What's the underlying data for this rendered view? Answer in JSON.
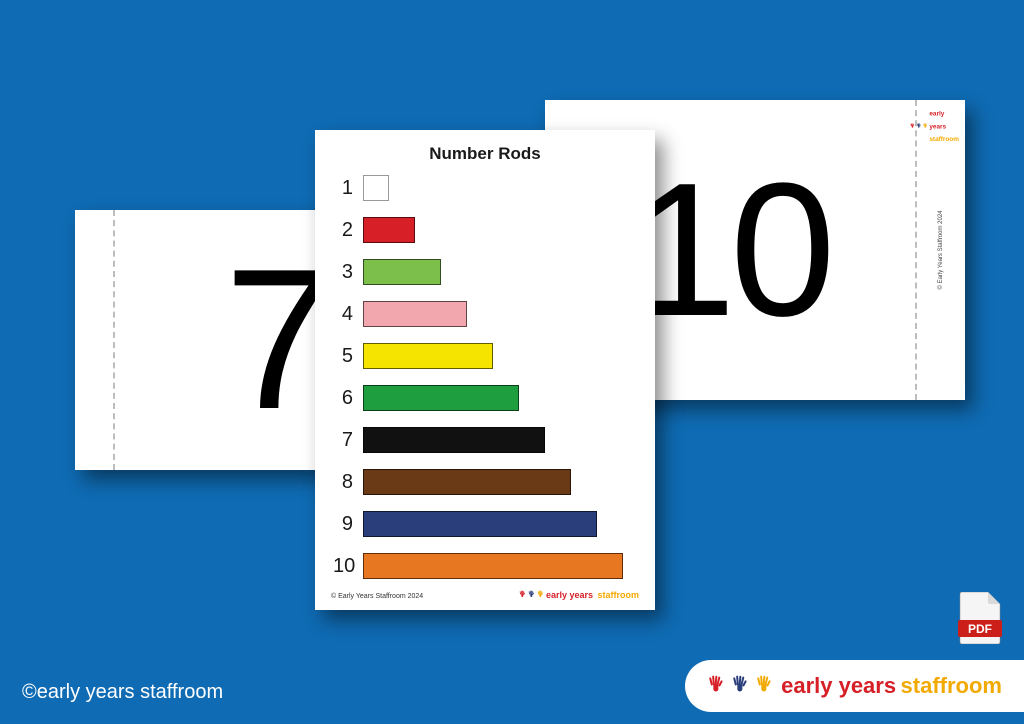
{
  "background_color": "#0f6bb3",
  "card7": {
    "number": "7"
  },
  "card10": {
    "number": "10",
    "side_copyright": "© Early Years Staffroom 2024"
  },
  "chart": {
    "title": "Number Rods",
    "title_fontsize": 17,
    "rod_height": 26,
    "row_gap": 14,
    "unit_width": 26,
    "rods": [
      {
        "label": "1",
        "units": 1,
        "color": "#ffffff"
      },
      {
        "label": "2",
        "units": 2,
        "color": "#d61f26"
      },
      {
        "label": "3",
        "units": 3,
        "color": "#7cc04b"
      },
      {
        "label": "4",
        "units": 4,
        "color": "#f1a7ad"
      },
      {
        "label": "5",
        "units": 5,
        "color": "#f4e400"
      },
      {
        "label": "6",
        "units": 6,
        "color": "#1f9e3f"
      },
      {
        "label": "7",
        "units": 7,
        "color": "#111111"
      },
      {
        "label": "8",
        "units": 8,
        "color": "#6a3a16"
      },
      {
        "label": "9",
        "units": 9,
        "color": "#2a3e7c"
      },
      {
        "label": "10",
        "units": 10,
        "color": "#e87722"
      }
    ],
    "footer": "© Early Years Staffroom 2024"
  },
  "brand": {
    "word1": "early years",
    "word2": "staffroom",
    "word1_color": "#d61f26",
    "word2_color": "#f2a900",
    "hand_colors": [
      "#d61f26",
      "#2a3e7c",
      "#f2a900"
    ]
  },
  "copyright": "©early years staffroom",
  "pdf_label": "PDF"
}
